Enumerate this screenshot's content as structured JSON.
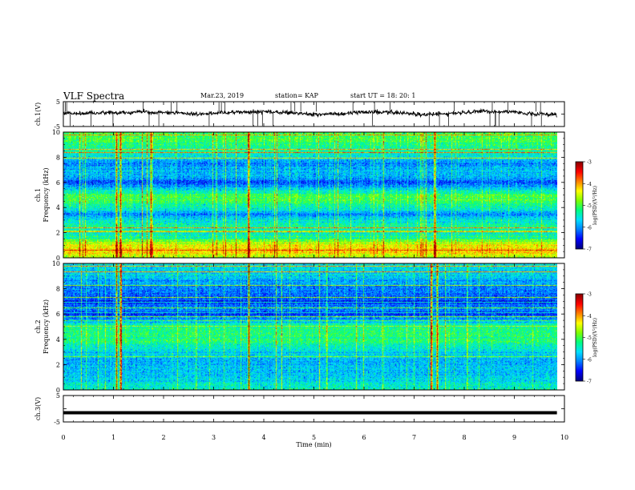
{
  "header": {
    "title": "VLF Spectra",
    "date": "Mar.23, 2019",
    "station": "station= KAP",
    "start": "start  UT =   18: 20: 1"
  },
  "colors": {
    "colormap": [
      "#000080",
      "#0000ff",
      "#0080ff",
      "#00e0ff",
      "#00ff80",
      "#80ff00",
      "#ffff00",
      "#ff8000",
      "#ff0000",
      "#8b0000"
    ],
    "waveform": "#000000",
    "frame": "#000000"
  },
  "chart_data": [
    {
      "type": "line",
      "panel": "ch1-waveform",
      "ylabel": "ch.1(V)",
      "ylim": [
        -5,
        5
      ],
      "yticks": [
        5,
        -5
      ],
      "xlim": [
        0,
        10
      ],
      "approx_mean_V": 0.5,
      "approx_range_V": [
        -3.5,
        4.5
      ],
      "end_time_min": 9.85
    },
    {
      "type": "heatmap",
      "panel": "ch1-spectrogram",
      "ylabel_top": "ch.1",
      "ylabel": "Frequency (kHz)",
      "ylim": [
        0,
        10
      ],
      "yticks": [
        0,
        2,
        4,
        6,
        8,
        10
      ],
      "xlim": [
        0,
        10
      ],
      "end_time_min": 9.85,
      "colorbar": {
        "label": "log(PSD)(V²/Hz)",
        "range": [
          -7,
          -3
        ],
        "ticks": [
          -3,
          -4,
          -5,
          -6,
          -7
        ]
      },
      "freq_profile_kHz": [
        0,
        0.5,
        1,
        1.5,
        2,
        2.5,
        3,
        3.5,
        4,
        4.5,
        5,
        5.5,
        6,
        6.5,
        7,
        7.5,
        8,
        8.5,
        9,
        9.5,
        10
      ],
      "freq_profile_log_psd": [
        -4.6,
        -4.2,
        -4.5,
        -5.2,
        -5.6,
        -5.3,
        -5.6,
        -6.0,
        -5.4,
        -5.1,
        -5.0,
        -5.7,
        -6.3,
        -5.8,
        -5.9,
        -6.1,
        -5.7,
        -5.4,
        -5.2,
        -5.1,
        -5.0
      ],
      "impulse_times_min": [
        1.05,
        1.13,
        1.75,
        3.7,
        7.4
      ]
    },
    {
      "type": "heatmap",
      "panel": "ch2-spectrogram",
      "ylabel_top": "ch.2",
      "ylabel": "Frequency (kHz)",
      "ylim": [
        0,
        10
      ],
      "yticks": [
        0,
        2,
        4,
        6,
        8,
        10
      ],
      "xlim": [
        0,
        10
      ],
      "end_time_min": 9.85,
      "colorbar": {
        "label": "log(PSD)(V²/Hz)",
        "range": [
          -7,
          -3
        ],
        "ticks": [
          -3,
          -4,
          -5,
          -6,
          -7
        ]
      },
      "freq_profile_kHz": [
        0,
        0.5,
        1,
        1.5,
        2,
        2.5,
        3,
        3.5,
        4,
        4.5,
        5,
        5.5,
        6,
        6.5,
        7,
        7.5,
        8,
        8.5,
        9,
        9.5,
        10
      ],
      "freq_profile_log_psd": [
        -5.3,
        -5.6,
        -5.8,
        -5.7,
        -5.9,
        -5.8,
        -5.6,
        -5.4,
        -5.2,
        -5.2,
        -5.3,
        -5.9,
        -6.3,
        -6.1,
        -6.4,
        -6.2,
        -6.1,
        -5.9,
        -5.8,
        -5.7,
        -5.6
      ],
      "impulse_times_min": [
        1.05,
        1.13,
        3.7,
        7.35,
        7.45
      ]
    },
    {
      "type": "line",
      "panel": "ch3-waveform",
      "ylabel": "ch.3(V)",
      "ylim": [
        -5,
        5
      ],
      "yticks": [
        5,
        -5
      ],
      "xlim": [
        0,
        10
      ],
      "xticks": [
        0,
        1,
        2,
        3,
        4,
        5,
        6,
        7,
        8,
        9,
        10
      ],
      "xlabel": "Time (min)",
      "constant_V": -1.5,
      "end_time_min": 9.85
    }
  ]
}
